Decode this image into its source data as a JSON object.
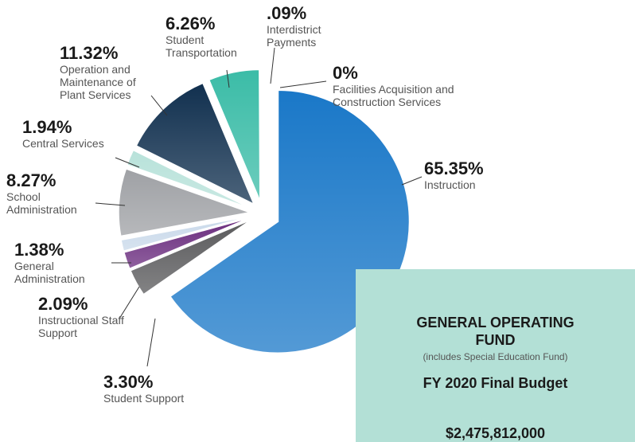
{
  "chart_data": {
    "type": "pie",
    "title": "GENERAL OPERATING FUND",
    "subtitle": "(includes Special Education Fund)",
    "annotations": [
      "FY 2020 Final Budget",
      "$2,475,812,000"
    ],
    "categories": [
      "Instruction",
      "Student Support",
      "Instructional Staff Support",
      "General Administration",
      "School Administration",
      "Central Services",
      "Operation and Maintenance of Plant Services",
      "Student Transportation",
      "Interdistrict Payments",
      "Facilities Acquisition and Construction Services"
    ],
    "values": [
      65.35,
      3.3,
      2.09,
      1.38,
      8.27,
      1.94,
      11.32,
      6.26,
      0.09,
      0
    ],
    "value_labels": [
      "65.35%",
      "3.30%",
      "2.09%",
      "1.38%",
      "8.27%",
      "1.94%",
      "11.32%",
      "6.26%",
      ".09%",
      "0%"
    ],
    "colors": [
      "#1a78c8",
      "#5a5a5c",
      "#6a2c7e",
      "#c9d9ea",
      "#9fa1a5",
      "#b8e2da",
      "#11304f",
      "#3bbca7",
      "#cfcfcf",
      "#e8e8e8"
    ]
  }
}
